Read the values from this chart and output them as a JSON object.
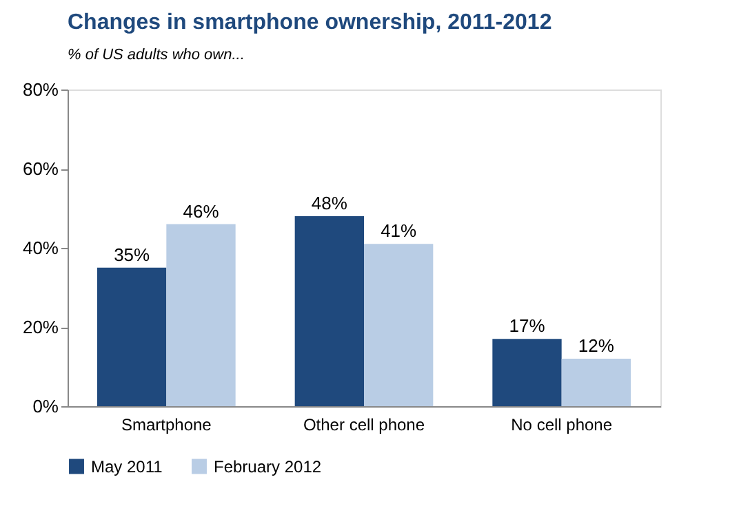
{
  "chart_data": {
    "type": "bar",
    "title": "Changes in smartphone ownership, 2011-2012",
    "subtitle": "% of US adults who own...",
    "categories": [
      "Smartphone",
      "Other cell phone",
      "No cell phone"
    ],
    "series": [
      {
        "name": "May 2011",
        "color": "#1f497d",
        "values": [
          35,
          48,
          17
        ],
        "value_labels": [
          "35%",
          "48%",
          "17%"
        ]
      },
      {
        "name": "February 2012",
        "color": "#b9cde5",
        "values": [
          46,
          41,
          12
        ],
        "value_labels": [
          "46%",
          "41%",
          "12%"
        ]
      }
    ],
    "ylim": [
      0,
      80
    ],
    "yticks": [
      {
        "value": 0,
        "label": "0%"
      },
      {
        "value": 20,
        "label": "20%"
      },
      {
        "value": 40,
        "label": "40%"
      },
      {
        "value": 60,
        "label": "60%"
      },
      {
        "value": 80,
        "label": "80%"
      }
    ],
    "grid": false,
    "legend": "bottom"
  }
}
